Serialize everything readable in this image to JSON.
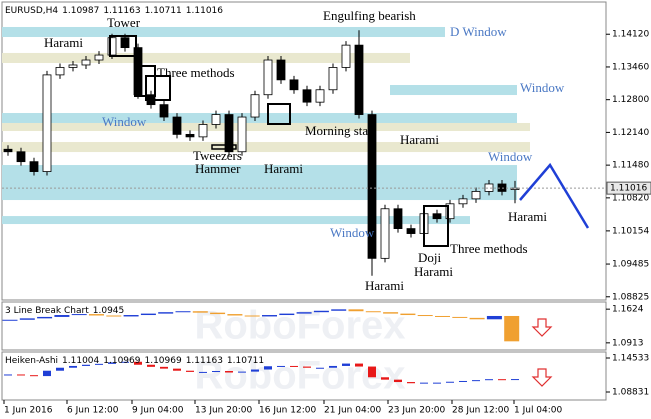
{
  "chart_data": [
    {
      "type": "candlestick",
      "title": "EURUSD,H4",
      "open": [
        1.118,
        1.1175,
        1.1155,
        1.1135,
        1.133,
        1.1345,
        1.135,
        1.136,
        1.137,
        1.1405,
        1.1385,
        1.129,
        1.127,
        1.1245,
        1.121,
        1.1205,
        1.123,
        1.125,
        1.1175,
        1.1245,
        1.129,
        1.136,
        1.132,
        1.13,
        1.1275,
        1.13,
        1.1345,
        1.139,
        1.125,
        1.096,
        1.106,
        1.102,
        1.101,
        1.105,
        1.104,
        1.107,
        1.108,
        1.1095,
        1.111,
        1.10987
      ],
      "high": [
        1.1188,
        1.1183,
        1.1163,
        1.1338,
        1.1353,
        1.1358,
        1.1368,
        1.1378,
        1.1413,
        1.1413,
        1.1393,
        1.1298,
        1.1278,
        1.1253,
        1.1218,
        1.1238,
        1.1258,
        1.1258,
        1.1253,
        1.1298,
        1.1368,
        1.1368,
        1.1328,
        1.1308,
        1.1308,
        1.1353,
        1.1398,
        1.142,
        1.1258,
        1.1068,
        1.1068,
        1.1028,
        1.1058,
        1.1058,
        1.1078,
        1.1088,
        1.1103,
        1.1118,
        1.1118,
        1.11163
      ],
      "low": [
        1.1167,
        1.1147,
        1.1127,
        1.1127,
        1.1322,
        1.1337,
        1.1342,
        1.1352,
        1.1362,
        1.1377,
        1.1282,
        1.1262,
        1.1237,
        1.1202,
        1.1197,
        1.1197,
        1.1222,
        1.1167,
        1.1167,
        1.1237,
        1.1282,
        1.1312,
        1.1292,
        1.1267,
        1.1267,
        1.1292,
        1.1337,
        1.1242,
        1.0925,
        1.0952,
        1.1012,
        1.1002,
        1.1002,
        1.1032,
        1.1032,
        1.1062,
        1.1072,
        1.1087,
        1.1087,
        1.10711
      ],
      "close": [
        1.1175,
        1.1155,
        1.1135,
        1.133,
        1.1345,
        1.135,
        1.136,
        1.137,
        1.1405,
        1.1385,
        1.129,
        1.127,
        1.1245,
        1.121,
        1.1205,
        1.123,
        1.125,
        1.1175,
        1.1245,
        1.129,
        1.136,
        1.132,
        1.13,
        1.1275,
        1.13,
        1.1345,
        1.139,
        1.125,
        1.096,
        1.106,
        1.102,
        1.101,
        1.105,
        1.104,
        1.107,
        1.108,
        1.1095,
        1.111,
        1.1095,
        1.11016
      ],
      "up_color": "#ffffff",
      "down_color": "#000000",
      "wick_color": "#000000",
      "ylim": [
        1.0876,
        1.1477
      ],
      "yticks": [
        {
          "value": 1.1412,
          "label": "1.14120"
        },
        {
          "value": 1.1346,
          "label": "1.13460"
        },
        {
          "value": 1.128,
          "label": "1.12800"
        },
        {
          "value": 1.1214,
          "label": "1.12140"
        },
        {
          "value": 1.1148,
          "label": "1.11480"
        },
        {
          "value": 1.1082,
          "label": "1.10820"
        },
        1.10154,
        1.09485,
        1.08825
      ],
      "time_labels": [
        "1 Jun 2016",
        "6 Jun 12:00",
        "9 Jun 04:00",
        "13 Jun 20:00",
        "16 Jun 12:00",
        "21 Jun 04:00",
        "23 Jun 20:00",
        "28 Jun 12:00",
        "1 Jul 04:00"
      ],
      "zones": [
        {
          "low": 1.14064,
          "high": 1.14266,
          "color": "#b4e0e8"
        },
        {
          "low": 1.1354,
          "high": 1.13742,
          "color": "#e9e8cf"
        },
        {
          "low": 1.12894,
          "high": 1.13096,
          "color": "#b4e0e8"
        },
        {
          "low": 1.12289,
          "high": 1.12531,
          "color": "#b4e0e8"
        },
        {
          "low": 1.12168,
          "high": 1.1233,
          "color": "#e9e8cf"
        },
        {
          "low": 1.11744,
          "high": 1.11946,
          "color": "#e9e8cf"
        },
        {
          "low": 1.10776,
          "high": 1.11482,
          "color": "#b4e0e8"
        },
        {
          "low": 1.10292,
          "high": 1.10453,
          "color": "#b4e0e8"
        }
      ],
      "annotations": [
        {
          "text": "Tower",
          "color": "#000000"
        },
        {
          "text": "Harami",
          "color": "#000000"
        },
        {
          "text": "Three methods",
          "color": "#000000"
        },
        {
          "text": "Window",
          "color": "#4a78c4"
        },
        {
          "text": "Tweezers",
          "color": "#000000"
        },
        {
          "text": "Hammer",
          "color": "#000000"
        },
        {
          "text": "Harami",
          "color": "#000000"
        },
        {
          "text": "Morning star",
          "color": "#000000"
        },
        {
          "text": "Engulfing bearish",
          "color": "#000000"
        },
        {
          "text": "D Window",
          "color": "#4a78c4"
        },
        {
          "text": "Window",
          "color": "#4a78c4"
        },
        {
          "text": "Harami",
          "color": "#000000"
        },
        {
          "text": "Window",
          "color": "#4a78c4"
        },
        {
          "text": "Harami",
          "color": "#000000"
        },
        {
          "text": "Window",
          "color": "#4a78c4"
        },
        {
          "text": "Three methods",
          "color": "#000000"
        },
        {
          "text": "Doji",
          "color": "#000000"
        },
        {
          "text": "Harami",
          "color": "#000000"
        },
        {
          "text": "Harami",
          "color": "#000000"
        }
      ]
    },
    {
      "type": "line-break",
      "title": "3 Line Break Chart",
      "current": 1.0945,
      "watermark": "RoboForex",
      "values": [
        1.14,
        1.143,
        1.146,
        1.15,
        1.152,
        1.149,
        1.147,
        1.15,
        1.153,
        1.156,
        1.158,
        1.155,
        1.152,
        1.149,
        1.147,
        1.15,
        1.153,
        1.156,
        1.159,
        1.162,
        1.158,
        1.156,
        1.153,
        1.15,
        1.148,
        1.146,
        1.144,
        1.141,
        1.148,
        1.0945
      ],
      "up_color": "#1f3fd6",
      "down_color": "#f0a030",
      "ylim": [
        1.0762,
        1.1775
      ],
      "yticks": [
        1.1624,
        1.0913
      ]
    },
    {
      "type": "heiken-ashi",
      "title": "Heiken-Ashi",
      "header_values": [
        1.11004,
        1.10969,
        1.10969,
        1.11163,
        1.10711
      ],
      "watermark": "RoboForex",
      "values": [
        1.1177,
        1.1165,
        1.115,
        1.124,
        1.129,
        1.132,
        1.134,
        1.1355,
        1.138,
        1.139,
        1.134,
        1.1305,
        1.1275,
        1.124,
        1.122,
        1.122,
        1.1235,
        1.121,
        1.1225,
        1.126,
        1.1315,
        1.132,
        1.131,
        1.129,
        1.129,
        1.132,
        1.136,
        1.131,
        1.113,
        1.109,
        1.105,
        1.103,
        1.104,
        1.104,
        1.1055,
        1.1068,
        1.1082,
        1.1098,
        1.1097,
        1.11
      ],
      "up_color": "#1f3fd6",
      "down_color": "#e81818",
      "ylim": [
        1.07489,
        1.1554
      ],
      "yticks": [
        1.14533,
        1.08831
      ]
    }
  ]
}
